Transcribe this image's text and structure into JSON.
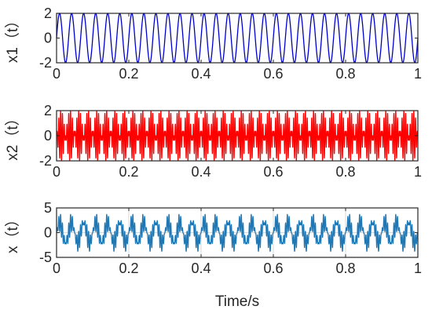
{
  "chart_data": [
    {
      "type": "line",
      "ylabel": "x1（t）",
      "xlim": [
        0,
        1
      ],
      "ylim": [
        -2,
        2
      ],
      "xticks": [
        "0",
        "0.2",
        "0.4",
        "0.6",
        "0.8",
        "1"
      ],
      "yticks": [
        "-2",
        "0",
        "2"
      ],
      "grid": false,
      "series": [
        {
          "color": "#0000cc",
          "expression": "2*sin(2*pi*30*t)",
          "components": [
            {
              "amplitude": 2,
              "frequency_hz": 30
            }
          ]
        }
      ]
    },
    {
      "type": "line",
      "ylabel": "x2（t）",
      "xlim": [
        0,
        1
      ],
      "ylim": [
        -2,
        2
      ],
      "xticks": [
        "0",
        "0.2",
        "0.4",
        "0.6",
        "0.8",
        "1"
      ],
      "yticks": [
        "-2",
        "0",
        "2"
      ],
      "grid": false,
      "series": [
        {
          "color": "#ff0000",
          "expression": "2*sin(2*pi*20*t)*sin(2*pi*200*t)",
          "components": [
            {
              "amplitude": 2,
              "envelope_frequency_hz": 20,
              "carrier_frequency_hz": 200
            }
          ]
        }
      ]
    },
    {
      "type": "line",
      "ylabel": "x（t）",
      "xlabel": "Time/s",
      "xlim": [
        0,
        1
      ],
      "ylim": [
        -5,
        5
      ],
      "xticks": [
        "0",
        "0.2",
        "0.4",
        "0.6",
        "0.8",
        "1"
      ],
      "yticks": [
        "-5",
        "0",
        "5"
      ],
      "grid": true,
      "series": [
        {
          "color": "#1f77b4",
          "expression": "x1(t)+x2(t)",
          "components": [
            {
              "amplitude": 2,
              "frequency_hz": 30
            },
            {
              "amplitude": 2,
              "envelope_frequency_hz": 20,
              "carrier_frequency_hz": 200
            }
          ]
        }
      ]
    }
  ]
}
